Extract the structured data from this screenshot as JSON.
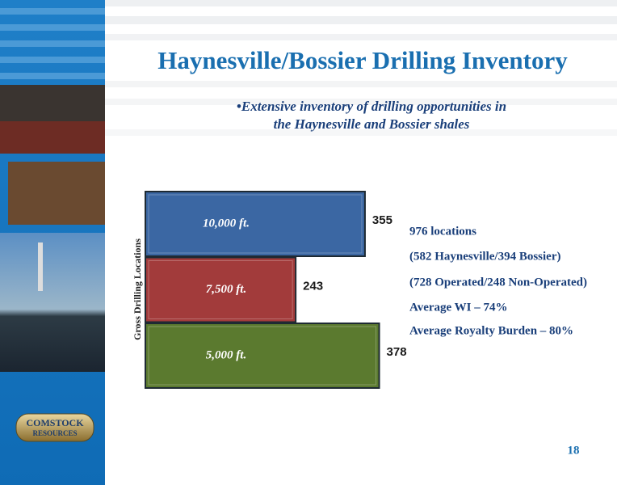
{
  "chart_data": {
    "type": "bar",
    "orientation": "horizontal",
    "title": "Haynesville/Bossier Drilling Inventory",
    "subtitle": [
      "•Extensive inventory of drilling opportunities in",
      "the Haynesville and Bossier shales"
    ],
    "y_label": "Gross Drilling Locations",
    "categories": [
      "10,000 ft.",
      "7,500 ft.",
      "5,000 ft."
    ],
    "values": [
      355,
      243,
      378
    ],
    "colors": [
      "#3b67a3",
      "#a23b3b",
      "#5b7a2f"
    ],
    "annotations": [
      "976 locations",
      "(582 Haynesville/394 Bossier)",
      "(728  Operated/248 Non-Operated)",
      "Average WI – 74%",
      "Average Royalty Burden – 80%"
    ]
  },
  "logo": [
    "COMSTOCK",
    "RESOURCES"
  ],
  "page_number": "18"
}
